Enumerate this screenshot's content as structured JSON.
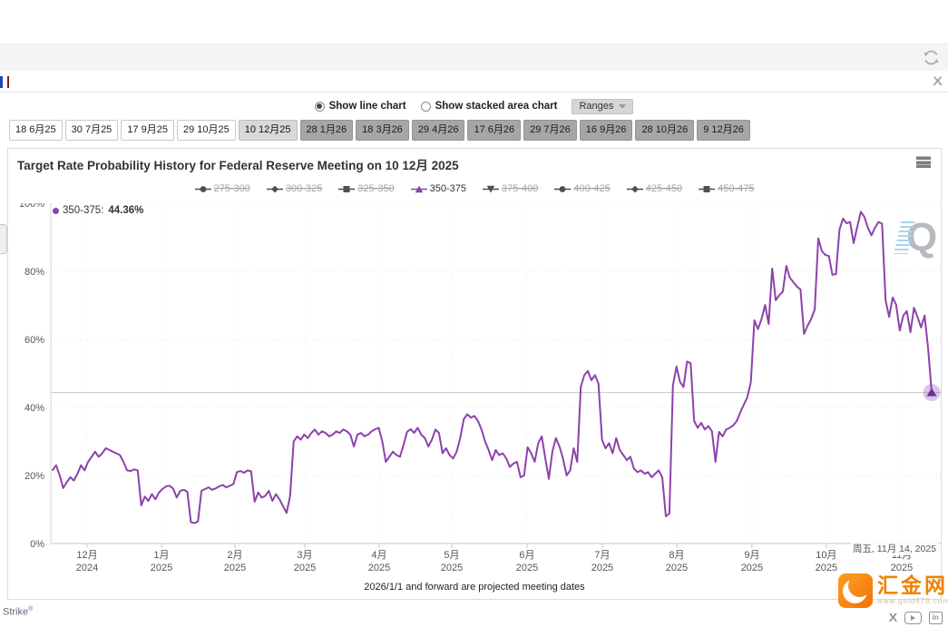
{
  "topbar": {
    "close_label": "X"
  },
  "controls": {
    "radio_line": "Show line chart",
    "radio_area": "Show stacked area chart",
    "selected": "line",
    "ranges_label": "Ranges"
  },
  "meeting_tabs": [
    {
      "label": "18 6月25",
      "state": "past"
    },
    {
      "label": "30 7月25",
      "state": "past"
    },
    {
      "label": "17 9月25",
      "state": "past"
    },
    {
      "label": "29 10月25",
      "state": "past"
    },
    {
      "label": "10 12月25",
      "state": "selected"
    },
    {
      "label": "28 1月26",
      "state": "future"
    },
    {
      "label": "18 3月26",
      "state": "future"
    },
    {
      "label": "29 4月26",
      "state": "future"
    },
    {
      "label": "17 6月26",
      "state": "future"
    },
    {
      "label": "29 7月26",
      "state": "future"
    },
    {
      "label": "16 9月26",
      "state": "future"
    },
    {
      "label": "28 10月26",
      "state": "future"
    },
    {
      "label": "9 12月26",
      "state": "future"
    }
  ],
  "chart": {
    "title": "Target Rate Probability History for Federal Reserve Meeting on 10 12月 2025",
    "tooltip": {
      "series_label": "350-375:",
      "value": "44.36%"
    },
    "crosshair_date": "周五, 11月 14, 2025",
    "caption": "2026/1/1 and forward are projected meeting dates",
    "watermark": "Q",
    "legend_items": [
      {
        "label": "275-300",
        "shape": "circle",
        "active": false
      },
      {
        "label": "300-325",
        "shape": "diamond",
        "active": false
      },
      {
        "label": "325-350",
        "shape": "square",
        "active": false
      },
      {
        "label": "350-375",
        "shape": "triangle",
        "active": true
      },
      {
        "label": "375-400",
        "shape": "triangle-down",
        "active": false
      },
      {
        "label": "400-425",
        "shape": "circle",
        "active": false
      },
      {
        "label": "425-450",
        "shape": "diamond",
        "active": false
      },
      {
        "label": "450-475",
        "shape": "square",
        "active": false
      }
    ]
  },
  "chart_data": {
    "type": "line",
    "title": "Target Rate Probability History for Federal Reserve Meeting on 10 12月 2025",
    "ylabel": "",
    "ylim": [
      0,
      100
    ],
    "y_tick_step": 20,
    "y_tick_labels": [
      "0%",
      "20%",
      "40%",
      "60%",
      "80%",
      "100%"
    ],
    "grid": "dotted",
    "legend_position": "top",
    "x_ticks": [
      {
        "month": "12月",
        "year": "2024",
        "pos": 0.0407
      },
      {
        "month": "1月",
        "year": "2025",
        "pos": 0.1242
      },
      {
        "month": "2月",
        "year": "2025",
        "pos": 0.2067
      },
      {
        "month": "3月",
        "year": "2025",
        "pos": 0.2851
      },
      {
        "month": "4月",
        "year": "2025",
        "pos": 0.3686
      },
      {
        "month": "5月",
        "year": "2025",
        "pos": 0.4501
      },
      {
        "month": "6月",
        "year": "2025",
        "pos": 0.5346
      },
      {
        "month": "7月",
        "year": "2025",
        "pos": 0.6191
      },
      {
        "month": "8月",
        "year": "2025",
        "pos": 0.7026
      },
      {
        "month": "9月",
        "year": "2025",
        "pos": 0.7871
      },
      {
        "month": "10月",
        "year": "2025",
        "pos": 0.8706
      },
      {
        "month": "11月",
        "year": "2025",
        "pos": 0.9552
      }
    ],
    "last_point": {
      "series": "350-375",
      "value": 44.36,
      "date": "周五, 11月 14, 2025"
    },
    "series": [
      {
        "name": "350-375",
        "color": "#8c42ab",
        "marker": "triangle",
        "visible": true,
        "values": [
          21.6,
          23,
          20,
          16.3,
          18,
          19.5,
          18.5,
          20.5,
          23,
          21.5,
          24,
          25.5,
          27,
          25.5,
          26.5,
          28,
          27.5,
          27,
          26.5,
          26,
          24,
          21.5,
          21.3,
          21.8,
          21.5,
          11.2,
          13.8,
          12.5,
          14.5,
          13,
          15,
          16,
          16.8,
          17,
          16.2,
          13.5,
          15.5,
          15.8,
          15.2,
          6.3,
          6,
          6.5,
          15.5,
          16,
          16.5,
          15.8,
          16.2,
          16.8,
          17.2,
          16.5,
          17,
          17.5,
          21,
          21.3,
          20.8,
          21.5,
          21.2,
          12.3,
          15,
          13.5,
          14,
          15.5,
          12.5,
          14.5,
          13,
          11,
          9,
          14,
          30,
          31.5,
          30.5,
          32,
          31,
          32.5,
          33.5,
          32,
          33,
          32.5,
          31.5,
          32,
          33,
          32.5,
          33.5,
          33,
          32,
          28.5,
          32,
          32.5,
          31.5,
          32,
          33,
          33.6,
          34,
          30,
          24,
          25.5,
          27,
          26,
          25.5,
          29,
          32.8,
          33.6,
          32.5,
          34,
          32,
          31,
          28.5,
          30.5,
          33.5,
          32.5,
          26.5,
          28,
          26,
          25,
          27,
          31,
          36.5,
          38,
          37,
          37.5,
          36,
          33.5,
          30,
          27.5,
          24.5,
          27.5,
          26,
          26.5,
          25,
          22.5,
          23.5,
          24,
          19.5,
          20,
          28.3,
          26.5,
          24,
          29.5,
          31.5,
          25,
          19,
          27,
          31,
          28.5,
          25,
          20,
          21.5,
          28,
          24,
          46,
          49.5,
          50.7,
          48,
          49.5,
          47,
          30.5,
          28,
          29.5,
          26.5,
          31,
          27.5,
          26,
          24.5,
          25.5,
          22,
          21,
          21.5,
          20.5,
          21,
          19.5,
          20.5,
          21.5,
          19.5,
          8,
          8.8,
          46.5,
          52,
          47.5,
          46,
          53.5,
          53,
          36,
          34,
          35.5,
          33.5,
          34.5,
          33,
          24,
          32.8,
          31.5,
          33.5,
          34,
          34.7,
          36,
          38.5,
          40.8,
          43,
          47.5,
          65.6,
          63,
          66,
          70.1,
          64.5,
          80.8,
          71.5,
          73,
          74,
          81.6,
          78.1,
          76.8,
          75.5,
          74.7,
          61.6,
          64,
          66,
          68.8,
          89.7,
          86,
          84.8,
          84.5,
          79,
          79.2,
          92.3,
          95.5,
          94.1,
          94.5,
          88.3,
          93,
          97.5,
          96,
          92.8,
          90.6,
          92.8,
          94.5,
          94,
          71.5,
          66.6,
          72.3,
          70.1,
          62.6,
          67,
          68.3,
          62.1,
          69.3,
          66.6,
          63.5,
          67,
          57.3,
          44.36
        ]
      },
      {
        "name": "275-300",
        "visible": false
      },
      {
        "name": "300-325",
        "visible": false
      },
      {
        "name": "325-350",
        "visible": false
      },
      {
        "name": "375-400",
        "visible": false
      },
      {
        "name": "400-425",
        "visible": false
      },
      {
        "name": "425-450",
        "visible": false
      },
      {
        "name": "450-475",
        "visible": false
      }
    ]
  },
  "footer": {
    "strike": "Strike",
    "reg": "®",
    "brand": "汇金网",
    "brand_url": "www.gold678.com"
  },
  "colors": {
    "accent_purple": "#8c42ab",
    "marker_purple": "#6b2f96",
    "brand_orange": "#f08200",
    "grid": "#e4e4e4",
    "crosshair_line": "#c8c8c8"
  }
}
